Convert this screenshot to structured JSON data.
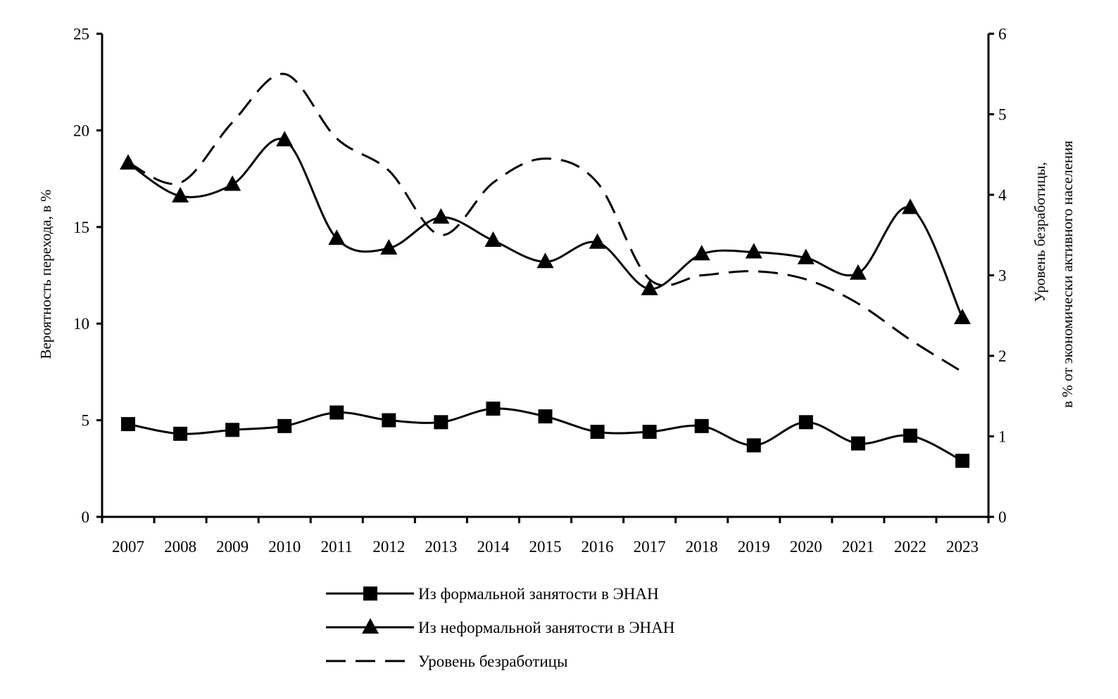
{
  "chart_data": {
    "type": "line",
    "title": "",
    "x": [
      "2007",
      "2008",
      "2009",
      "2010",
      "2011",
      "2012",
      "2013",
      "2014",
      "2015",
      "2016",
      "2017",
      "2018",
      "2019",
      "2020",
      "2021",
      "2022",
      "2023"
    ],
    "ylabel_left": "Вероятность перехода, в %",
    "ylabel_right_line1": "Уровень безработицы,",
    "ylabel_right_line2": "в % от экономически активного населения",
    "ylim_left": [
      0,
      25
    ],
    "yticks_left": [
      "0",
      "5",
      "10",
      "15",
      "20",
      "25"
    ],
    "ylim_right": [
      0,
      6
    ],
    "yticks_right": [
      "0",
      "1",
      "2",
      "3",
      "4",
      "5",
      "6"
    ],
    "grid": false,
    "legend_position": "bottom",
    "series": [
      {
        "name": "Из формальной занятости в ЭНАН",
        "axis": "left",
        "marker": "square",
        "style": "solid",
        "values": [
          4.8,
          4.3,
          4.5,
          4.7,
          5.4,
          5.0,
          4.9,
          5.6,
          5.2,
          4.4,
          4.4,
          4.7,
          3.7,
          4.9,
          3.8,
          4.2,
          2.9
        ]
      },
      {
        "name": "Из неформальной занятости в ЭНАН",
        "axis": "left",
        "marker": "triangle",
        "style": "solid",
        "values": [
          18.3,
          16.6,
          17.2,
          19.5,
          14.4,
          13.9,
          15.5,
          14.3,
          13.2,
          14.2,
          11.8,
          13.6,
          13.7,
          13.4,
          12.6,
          16.0,
          10.3
        ]
      },
      {
        "name": "Уровень безработицы",
        "axis": "right",
        "marker": "none",
        "style": "dashed",
        "values": [
          4.4,
          4.15,
          4.9,
          5.5,
          4.7,
          4.3,
          3.5,
          4.15,
          4.45,
          4.15,
          2.95,
          3.0,
          3.05,
          2.95,
          2.65,
          2.2,
          1.8
        ]
      }
    ],
    "colors": {
      "line": "#000000",
      "background": "#ffffff"
    }
  }
}
